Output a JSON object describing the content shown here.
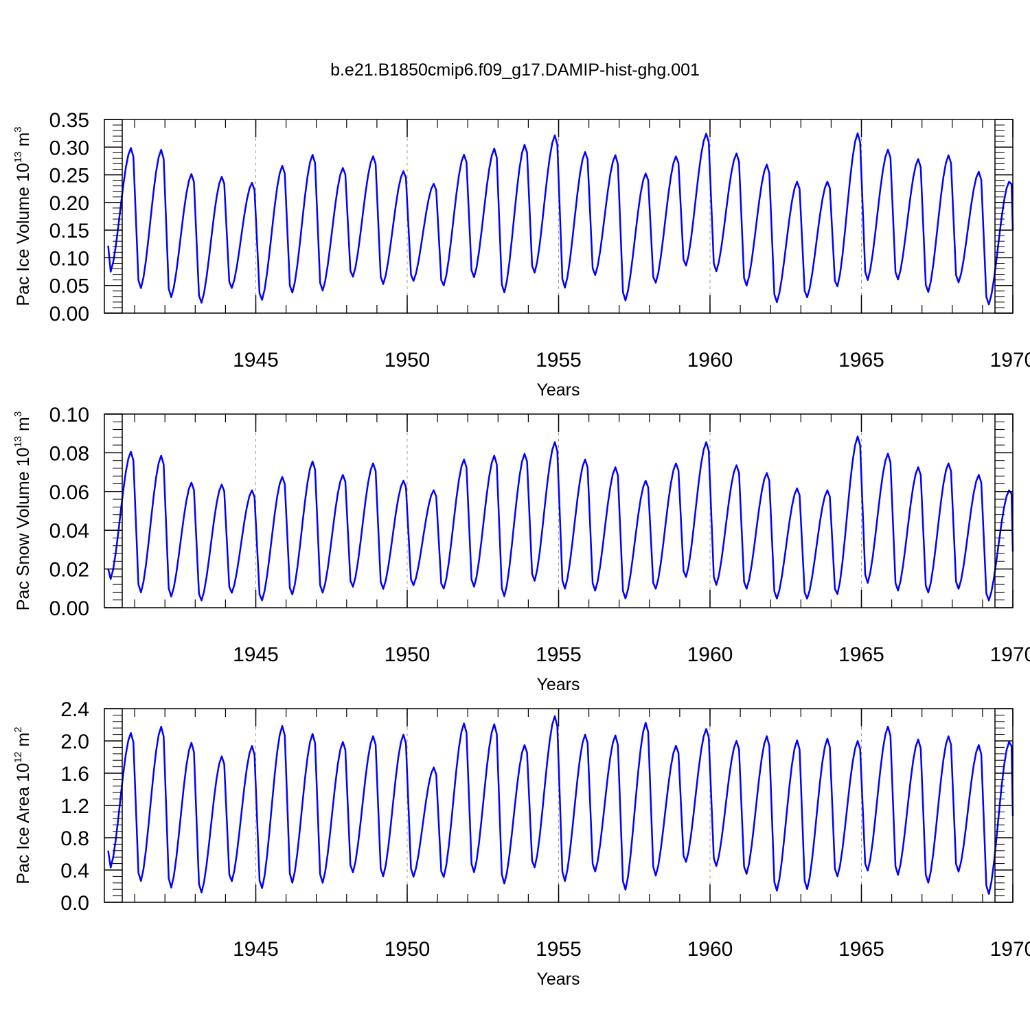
{
  "chart_data": {
    "type": "line",
    "title": "b.e21.B1850cmip6.f09_g17.DAMIP-hist-ghg.001",
    "line_color": "#0000ff",
    "grid_color": "#999999",
    "x_range": [
      1940,
      1970
    ],
    "x_ticks": [
      1945,
      1950,
      1955,
      1960,
      1965,
      1970
    ],
    "x_tick_labels": [
      "1945",
      "1950",
      "1955",
      "1960",
      "1965",
      "1970"
    ],
    "panels": [
      {
        "name": "pac-ice-volume",
        "ylabel_main": "Pac Ice Volume 10",
        "ylabel_exp": "13",
        "ylabel_unit": " m",
        "ylabel_unit_exp": "3",
        "xlabel": "Years",
        "ylim": [
          0,
          0.35
        ],
        "y_ticks": [
          0,
          0.05,
          0.1,
          0.15,
          0.2,
          0.25,
          0.3,
          0.35
        ],
        "y_tick_labels": [
          "0.00",
          "0.05",
          "0.10",
          "0.15",
          "0.20",
          "0.25",
          "0.30",
          "0.35"
        ],
        "annual_max": [
          0.3,
          0.297,
          0.253,
          0.248,
          0.237,
          0.268,
          0.288,
          0.264,
          0.285,
          0.258,
          0.235,
          0.288,
          0.299,
          0.306,
          0.323,
          0.293,
          0.287,
          0.254,
          0.285,
          0.326,
          0.29,
          0.27,
          0.239,
          0.239,
          0.327,
          0.297,
          0.28,
          0.287,
          0.257,
          0.239
        ],
        "annual_min": [
          0.072,
          0.042,
          0.026,
          0.016,
          0.043,
          0.021,
          0.034,
          0.038,
          0.063,
          0.05,
          0.056,
          0.047,
          0.062,
          0.034,
          0.07,
          0.043,
          0.066,
          0.02,
          0.052,
          0.083,
          0.073,
          0.047,
          0.017,
          0.026,
          0.045,
          0.057,
          0.058,
          0.035,
          0.053,
          0.013
        ],
        "start_value": 0.122,
        "end_value": 0.15
      },
      {
        "name": "pac-snow-volume",
        "ylabel_main": "Pac Snow Volume 10",
        "ylabel_exp": "13",
        "ylabel_unit": " m",
        "ylabel_unit_exp": "3",
        "xlabel": "Years",
        "ylim": [
          0,
          0.1
        ],
        "y_ticks": [
          0,
          0.02,
          0.04,
          0.06,
          0.08,
          0.1
        ],
        "y_tick_labels": [
          "0.00",
          "0.02",
          "0.04",
          "0.06",
          "0.08",
          "0.10"
        ],
        "annual_max": [
          0.081,
          0.079,
          0.065,
          0.064,
          0.061,
          0.068,
          0.076,
          0.069,
          0.075,
          0.066,
          0.061,
          0.077,
          0.079,
          0.08,
          0.086,
          0.077,
          0.073,
          0.066,
          0.075,
          0.086,
          0.074,
          0.07,
          0.062,
          0.061,
          0.089,
          0.08,
          0.073,
          0.075,
          0.069,
          0.061
        ],
        "annual_min": [
          0.014,
          0.007,
          0.005,
          0.003,
          0.007,
          0.003,
          0.006,
          0.007,
          0.01,
          0.009,
          0.011,
          0.009,
          0.01,
          0.005,
          0.013,
          0.009,
          0.008,
          0.004,
          0.009,
          0.015,
          0.011,
          0.009,
          0.004,
          0.004,
          0.006,
          0.012,
          0.008,
          0.007,
          0.009,
          0.003
        ],
        "start_value": 0.02,
        "end_value": 0.029
      },
      {
        "name": "pac-ice-area",
        "ylabel_main": "Pac Ice Area 10",
        "ylabel_exp": "12",
        "ylabel_unit": " m",
        "ylabel_unit_exp": "2",
        "xlabel": "Years",
        "ylim": [
          0,
          2.4
        ],
        "y_ticks": [
          0,
          0.4,
          0.8,
          1.2,
          1.6,
          2.0,
          2.4
        ],
        "y_tick_labels": [
          "0.0",
          "0.4",
          "0.8",
          "1.2",
          "1.6",
          "2.0",
          "2.4"
        ],
        "annual_max": [
          2.11,
          2.19,
          1.99,
          1.82,
          1.95,
          2.2,
          2.1,
          2.0,
          2.07,
          2.09,
          1.68,
          2.23,
          2.22,
          1.96,
          2.32,
          2.09,
          2.08,
          2.24,
          1.95,
          2.16,
          2.01,
          2.07,
          2.02,
          2.04,
          2.01,
          2.19,
          2.03,
          2.07,
          1.96,
          2.0
        ],
        "annual_min": [
          0.41,
          0.24,
          0.16,
          0.1,
          0.24,
          0.15,
          0.22,
          0.22,
          0.35,
          0.3,
          0.3,
          0.29,
          0.35,
          0.21,
          0.41,
          0.24,
          0.36,
          0.13,
          0.31,
          0.48,
          0.43,
          0.33,
          0.12,
          0.14,
          0.3,
          0.37,
          0.32,
          0.22,
          0.36,
          0.08
        ],
        "start_value": 0.64,
        "end_value": 1.07
      }
    ]
  }
}
